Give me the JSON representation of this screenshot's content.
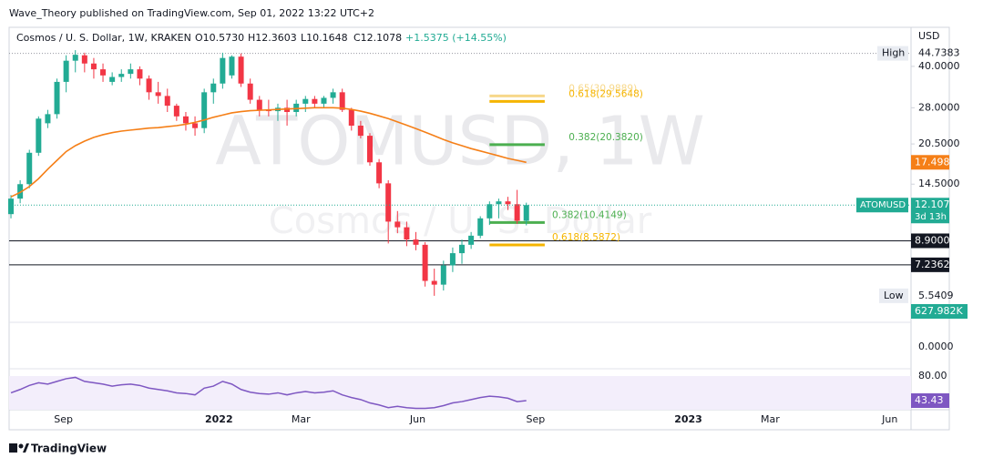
{
  "chart_data": {
    "type": "candlestick",
    "publisher": "Wave_Theory published on TradingView.com, Sep 01, 2022 13:22 UTC+2",
    "title": "Cosmos / U. S. Dollar, 1W, KRAKEN",
    "ohlc_legend": [
      "O10.5730",
      "H12.3603",
      "L10.1648",
      "C12.1078"
    ],
    "change": "+1.5375 (+14.55%)",
    "watermark": [
      "ATOMUSD, 1W",
      "Cosmos / U. S. Dollar"
    ],
    "currency": "USD",
    "log_scale": true,
    "ylim": [
      4.55,
      56
    ],
    "yticks": [
      {
        "value": 40,
        "label": "40.0000"
      },
      {
        "value": 28,
        "label": "28.0000"
      },
      {
        "value": 20.5,
        "label": "20.5000"
      },
      {
        "value": 14.5,
        "label": "14.5000"
      }
    ],
    "xlim": [
      -0.2,
      97.8
    ],
    "xticks": [
      {
        "value": 5.7,
        "label": "Sep"
      },
      {
        "value": 22.6,
        "label": "2022"
      },
      {
        "value": 31.5,
        "label": "Mar"
      },
      {
        "value": 44.2,
        "label": "Jun"
      },
      {
        "value": 57,
        "label": "Sep"
      },
      {
        "value": 73.6,
        "label": "2023"
      },
      {
        "value": 82.5,
        "label": "Mar"
      },
      {
        "value": 95.5,
        "label": "Jun"
      }
    ],
    "up_color": "#22ab94",
    "down_color": "#f23645",
    "candles": {
      "open": [
        11.2,
        12.8,
        14.5,
        19.0,
        24.5,
        26.5,
        35,
        42,
        44,
        41,
        39,
        35,
        36.5,
        37.5,
        39,
        36,
        32,
        31,
        28.5,
        26,
        24.5,
        23.5,
        32,
        34.5,
        37,
        43.5,
        34.5,
        30,
        27.5,
        27.2,
        28,
        27,
        29,
        30.2,
        29,
        30.5,
        32,
        27.5,
        24,
        22,
        17.5,
        14.6,
        10.5,
        10,
        9,
        8.6,
        6.3,
        6.1,
        7.2,
        8.0,
        8.6,
        9.3,
        10.8,
        12.2,
        12.5,
        12.2,
        10.573
      ],
      "high": [
        13.2,
        15.0,
        19.5,
        26.0,
        27.5,
        36,
        44,
        46,
        45,
        43,
        41,
        38,
        39,
        41,
        40,
        37,
        35,
        33,
        29,
        27,
        26,
        33,
        36,
        45,
        44,
        44.7383,
        36,
        31,
        30,
        29,
        30,
        30,
        31,
        31,
        31,
        33,
        33,
        28,
        25,
        22.5,
        18,
        15,
        11.5,
        10.5,
        9.6,
        8.8,
        7.0,
        7.5,
        8.4,
        9.0,
        9.6,
        11,
        12.5,
        12.8,
        13.0,
        13.8,
        12.3603
      ],
      "low": [
        10.8,
        12.3,
        14.0,
        18.5,
        23.5,
        25.5,
        32,
        38,
        38,
        36,
        35,
        34,
        35,
        36,
        34,
        30,
        29,
        27,
        25,
        23,
        22,
        22.5,
        29,
        33,
        36,
        33.5,
        29,
        26,
        26,
        25,
        24,
        26,
        27,
        28,
        28,
        29,
        27,
        23,
        21.5,
        17,
        14,
        8.7,
        9.5,
        8.5,
        8.2,
        6.0,
        5.5409,
        5.8,
        6.8,
        7.3,
        8.3,
        9.1,
        10.2,
        10.8,
        11.6,
        10.3,
        10.1648
      ],
      "close": [
        12.8,
        14.5,
        19.0,
        25.5,
        26.5,
        35,
        42,
        44.2,
        41,
        39,
        37,
        36.5,
        37.5,
        39,
        36,
        32,
        31,
        28.5,
        26,
        24.5,
        23.5,
        32,
        34.5,
        43,
        43.5,
        34.5,
        30,
        27.5,
        27.2,
        28,
        27,
        29,
        30.2,
        29,
        30.5,
        32,
        27.5,
        24,
        22,
        17.5,
        14.6,
        10.5,
        10,
        9,
        8.6,
        6.3,
        6.1,
        7.2,
        8.0,
        8.6,
        9.3,
        10.8,
        12.2,
        12.5,
        12.2,
        10.57,
        12.1078
      ]
    },
    "ma": {
      "color": "#f57f17",
      "values": [
        13.0,
        13.5,
        14.2,
        15.2,
        16.5,
        17.8,
        19.2,
        20.2,
        21.0,
        21.7,
        22.2,
        22.6,
        22.9,
        23.1,
        23.3,
        23.5,
        23.6,
        23.8,
        24.0,
        24.3,
        24.7,
        25.2,
        25.8,
        26.3,
        26.8,
        27.1,
        27.3,
        27.4,
        27.5,
        27.6,
        27.7,
        27.8,
        27.9,
        28.0,
        28.0,
        28.0,
        27.9,
        27.6,
        27.2,
        26.7,
        26.1,
        25.5,
        24.8,
        24.1,
        23.4,
        22.7,
        22.0,
        21.3,
        20.7,
        20.2,
        19.7,
        19.3,
        18.9,
        18.5,
        18.1,
        17.8,
        17.4982
      ],
      "label": "17.4982"
    },
    "high_mark": {
      "name": "High",
      "value": 44.7383,
      "label": "44.7383"
    },
    "low_mark": {
      "name": "Low",
      "value": 5.5409,
      "label": "5.5409"
    },
    "last_price": {
      "name": "ATOMUSD",
      "value": 12.1078,
      "label": "12.1078",
      "countdown": "3d 13h"
    },
    "levels": [
      {
        "value": 8.9,
        "label": "8.9000"
      },
      {
        "value": 7.2362,
        "label": "7.2362"
      }
    ],
    "fib_levels": [
      {
        "value": 30.9889,
        "label": "0.65(30.9889)",
        "color": "#f7d88a"
      },
      {
        "value": 29.5648,
        "label": "0.618(29.5648)",
        "color": "#f5b400"
      },
      {
        "value": 20.382,
        "label": "0.382(20.3820)",
        "color": "#4caf50"
      },
      {
        "value": 10.4149,
        "label": "0.382(10.4149)",
        "color": "#4caf50"
      },
      {
        "value": 8.5872,
        "label": "0.618(8.5872)",
        "color": "#f5b400"
      }
    ],
    "volume_label": "627.982K",
    "macd_label": "0.0000",
    "rsi": {
      "color": "#7e57c2",
      "ylim": [
        29.9,
        90.8
      ],
      "yticks": [
        {
          "value": 80,
          "label": "80.00"
        }
      ],
      "label": "43.43",
      "values": [
        55,
        60,
        66,
        70,
        68,
        72,
        76,
        78,
        72,
        70,
        68,
        65,
        67,
        68,
        66,
        62,
        60,
        58,
        55,
        54,
        52,
        62,
        65,
        72,
        68,
        60,
        56,
        54,
        53,
        55,
        52,
        55,
        57,
        55,
        56,
        58,
        52,
        48,
        45,
        40,
        37,
        33,
        35,
        33,
        32,
        32,
        33,
        36,
        40,
        42,
        45,
        48,
        50,
        49,
        47,
        42,
        43.43
      ]
    },
    "footer": "TradingView"
  }
}
